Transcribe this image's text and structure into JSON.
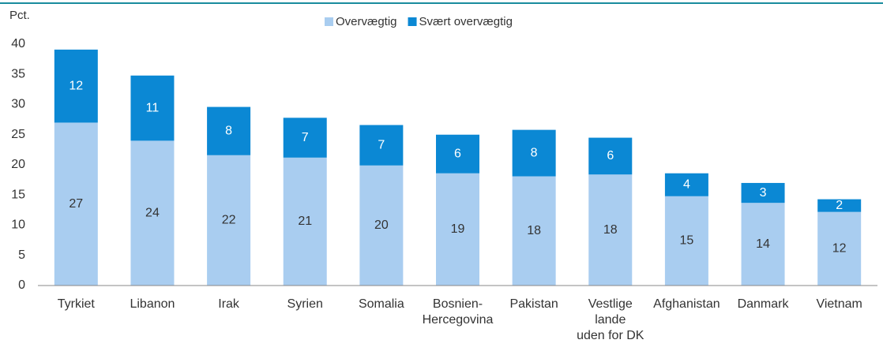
{
  "chart_data": {
    "type": "stacked_bar",
    "y_label": "Pct.",
    "categories": [
      "Tyrkiet",
      "Libanon",
      "Irak",
      "Syrien",
      "Somalia",
      "Bosnien-\nHercegovina",
      "Pakistan",
      "Vestlige\nlande\nuden for DK",
      "Afghanistan",
      "Danmark",
      "Vietnam"
    ],
    "series": [
      {
        "name": "Overvægtig",
        "color": "#a9cdf0",
        "values": [
          27.0,
          24.0,
          21.6,
          21.2,
          19.9,
          18.6,
          18.1,
          18.4,
          14.8,
          13.7,
          12.2
        ],
        "value_labels": [
          "27",
          "24",
          "22",
          "21",
          "20",
          "19",
          "18",
          "18",
          "15",
          "14",
          "12"
        ]
      },
      {
        "name": "Svært overvægtig",
        "color": "#0b88d4",
        "values": [
          12.1,
          10.8,
          8.0,
          6.6,
          6.7,
          6.4,
          7.7,
          6.1,
          3.8,
          3.3,
          2.1
        ],
        "value_labels": [
          "12",
          "11",
          "8",
          "7",
          "7",
          "6",
          "8",
          "6",
          "4",
          "3",
          "2"
        ]
      }
    ],
    "ylim": [
      0,
      40
    ],
    "yticks": [
      0,
      5,
      10,
      15,
      20,
      25,
      30,
      35,
      40
    ],
    "legend": "top"
  }
}
